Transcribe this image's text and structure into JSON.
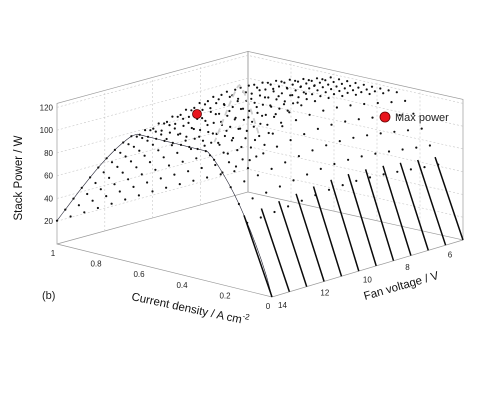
{
  "chart_data": {
    "type": "surface",
    "panel_label": "(b)",
    "xlabel": "Current density / A cm",
    "xlabel_superscript": "-2",
    "ylabel": "Fan voltage / V",
    "zlabel": "Stack Power / W",
    "x_ticks": [
      "1",
      "0.8",
      "0.6",
      "0.4",
      "0.2",
      "0"
    ],
    "y_ticks": [
      "14",
      "12",
      "10",
      "8",
      "6"
    ],
    "z_ticks": [
      "20",
      "40",
      "60",
      "80",
      "100",
      "120"
    ],
    "xlim": [
      0,
      1.0
    ],
    "ylim": [
      5,
      14
    ],
    "zlim": [
      0,
      130
    ],
    "legend": [
      {
        "label": "Max power",
        "color": "#e8141c"
      }
    ],
    "max_power_point": {
      "current_density": 0.88,
      "fan_voltage": 13,
      "power": 128
    },
    "colormap": "jet",
    "grid": true
  }
}
